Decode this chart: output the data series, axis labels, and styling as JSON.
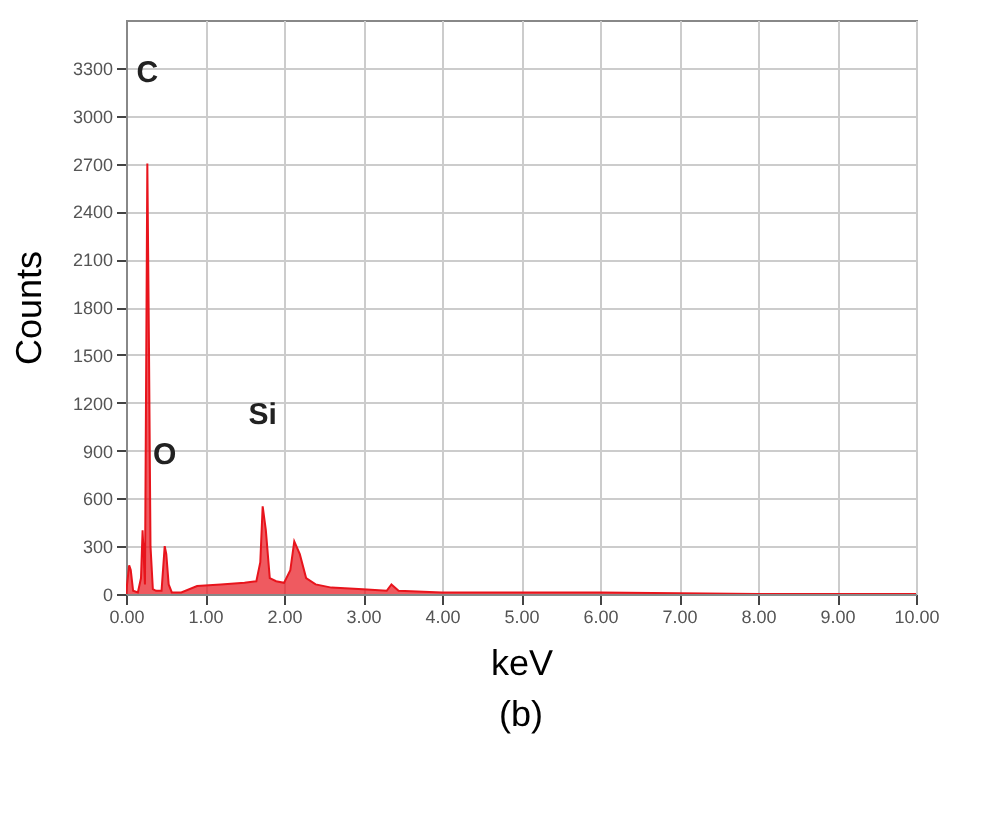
{
  "chart_data": {
    "type": "area",
    "xlabel": "keV",
    "ylabel": "Counts",
    "x": [
      0,
      0.04,
      0.06,
      0.09,
      0.15,
      0.19,
      0.21,
      0.24,
      0.27,
      0.29,
      0.31,
      0.34,
      0.38,
      0.45,
      0.49,
      0.51,
      0.54,
      0.58,
      0.7,
      0.9,
      1.2,
      1.5,
      1.65,
      1.7,
      1.73,
      1.77,
      1.82,
      1.9,
      2.0,
      2.08,
      2.13,
      2.2,
      2.28,
      2.4,
      2.6,
      3.0,
      3.3,
      3.36,
      3.45,
      4.0,
      6.0,
      8.0,
      10.0
    ],
    "series": [
      {
        "color": "#e8141c",
        "values": [
          0,
          180,
          150,
          20,
          10,
          100,
          400,
          60,
          2700,
          1600,
          300,
          30,
          20,
          20,
          300,
          250,
          60,
          10,
          10,
          50,
          60,
          70,
          80,
          200,
          550,
          400,
          100,
          80,
          70,
          150,
          330,
          250,
          100,
          60,
          40,
          30,
          20,
          60,
          20,
          10,
          10,
          0,
          0
        ]
      }
    ],
    "xlim": [
      0,
      10
    ],
    "ylim": [
      0,
      3600
    ],
    "xticks": [
      {
        "value": 0,
        "label": "0.00"
      },
      {
        "value": 1,
        "label": "1.00"
      },
      {
        "value": 2,
        "label": "2.00"
      },
      {
        "value": 3,
        "label": "3.00"
      },
      {
        "value": 4,
        "label": "4.00"
      },
      {
        "value": 5,
        "label": "5.00"
      },
      {
        "value": 6,
        "label": "6.00"
      },
      {
        "value": 7,
        "label": "7.00"
      },
      {
        "value": 8,
        "label": "8.00"
      },
      {
        "value": 9,
        "label": "9.00"
      },
      {
        "value": 10,
        "label": "10.00"
      }
    ],
    "yticks": [
      0,
      300,
      600,
      900,
      1200,
      1500,
      1800,
      2100,
      2400,
      2700,
      3000,
      3300
    ],
    "grid": true,
    "annotations": [
      {
        "text": "C",
        "x": 0.27,
        "y": 2700
      },
      {
        "text": "O",
        "x": 0.49,
        "y": 300
      },
      {
        "text": "Si",
        "x": 1.73,
        "y": 550
      },
      "(b)"
    ]
  }
}
